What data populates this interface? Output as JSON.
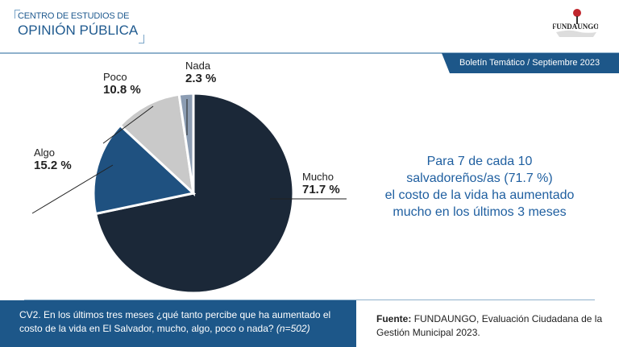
{
  "header": {
    "org_line1": "CENTRO DE ESTUDIOS DE",
    "org_line2": "OPINIÓN PÚBLICA",
    "logo_text": "FUNDAUNGO",
    "bulletin": "Boletín Temático / Septiembre 2023"
  },
  "chart_data": {
    "type": "pie",
    "categories": [
      "Mucho",
      "Algo",
      "Poco",
      "Nada"
    ],
    "values": [
      71.7,
      15.2,
      10.8,
      2.3
    ],
    "value_labels": [
      "71.7 %",
      "15.2 %",
      "10.8 %",
      "2.3 %"
    ],
    "colors": [
      "#1b2838",
      "#1f5180",
      "#c9c9c9",
      "#8c9db3"
    ],
    "start": "top",
    "direction": "clockwise"
  },
  "headline": [
    "Para 7 de cada 10",
    "salvadoreños/as (71.7 %)",
    "el costo de la vida ha aumentado",
    "mucho en los últimos 3 meses"
  ],
  "footer": {
    "question": "CV2. En los últimos tres meses ¿qué tanto percibe que ha aumentado el costo de la vida en El Salvador, mucho, algo, poco o nada?",
    "n": "(n=502)",
    "source_label": "Fuente:",
    "source_text": "FUNDAUNGO, Evaluación Ciudadana de la Gestión Municipal 2023."
  }
}
